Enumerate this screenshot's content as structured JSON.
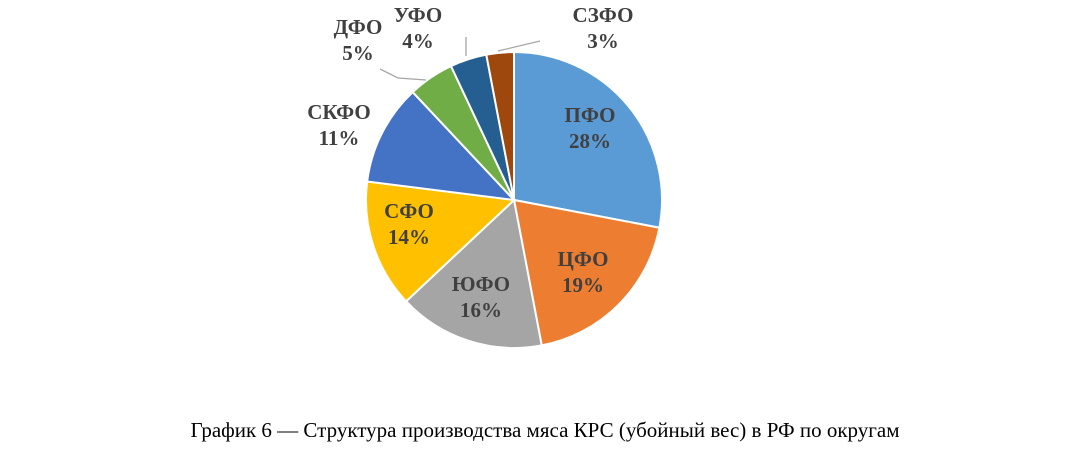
{
  "chart_data": {
    "type": "pie",
    "categories": [
      "ПФО",
      "ЦФО",
      "ЮФО",
      "СФО",
      "СКФО",
      "ДФО",
      "УФО",
      "СЗФО"
    ],
    "values": [
      28,
      19,
      16,
      14,
      11,
      5,
      4,
      3
    ],
    "value_labels": [
      "28%",
      "19%",
      "16%",
      "14%",
      "11%",
      "5%",
      "4%",
      "3%"
    ],
    "colors": [
      "#5B9BD5",
      "#ED7D31",
      "#A5A5A5",
      "#FFC000",
      "#4472C4",
      "#70AD47",
      "#255E91",
      "#9E480E"
    ],
    "start_angle_deg": 0,
    "direction": "clockwise",
    "legend": "none",
    "data_labels": "category and percent"
  },
  "caption": "График 6 — Структура производства мяса КРС (убойный вес) в РФ по округам"
}
